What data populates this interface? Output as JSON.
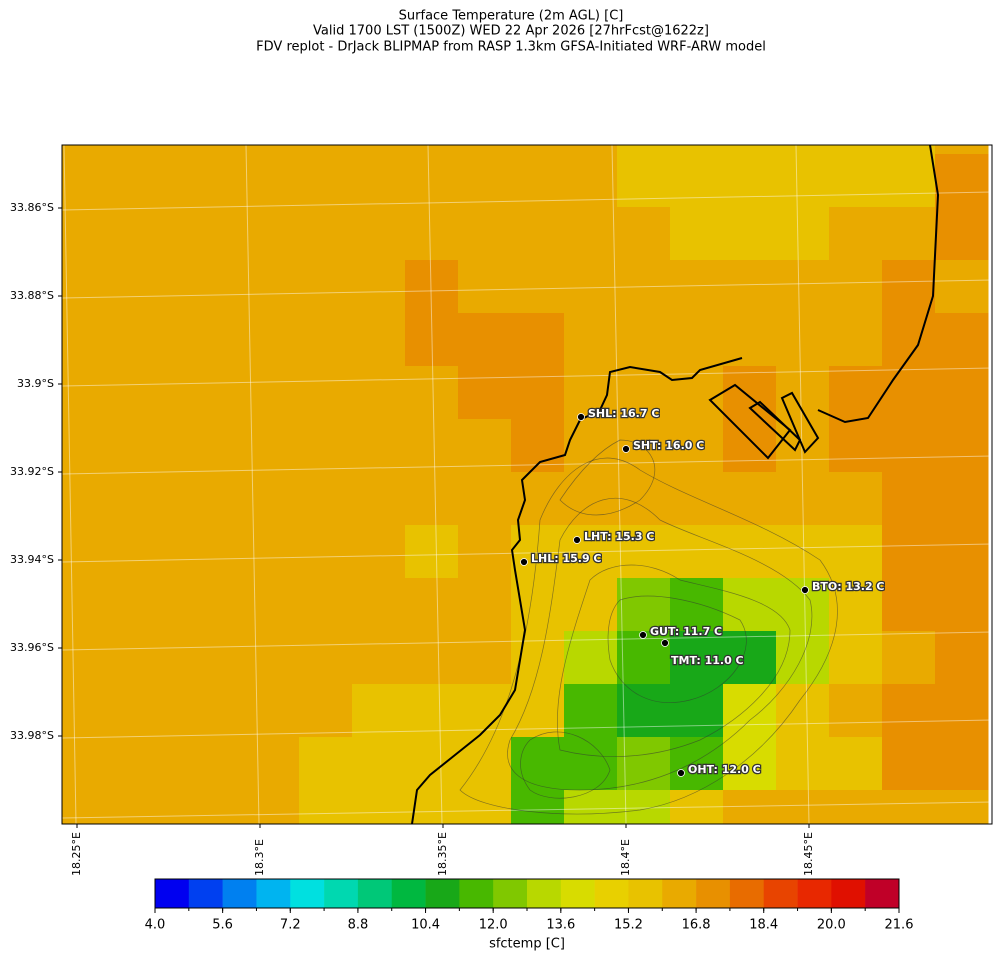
{
  "title": [
    "Surface Temperature (2m AGL) [C]",
    "Valid 1700 LST (1500Z) WED 22 Apr 2026 [27hrFcst@1622z]",
    "FDV replot - DrJack BLIPMAP from RASP 1.3km GFSA-Initiated WRF-ARW model"
  ],
  "map": {
    "lat_labels": [
      "33.86°S",
      "33.88°S",
      "33.9°S",
      "33.92°S",
      "33.94°S",
      "33.96°S",
      "33.98°S"
    ],
    "lon_labels": [
      "18.25°E",
      "18.3°E",
      "18.35°E",
      "18.4°E",
      "18.45°E"
    ],
    "stations": [
      "SHL: 16.7 C",
      "SHT: 16.0 C",
      "LHT: 15.3 C",
      "LHL: 15.9 C",
      "BTO: 13.2 C",
      "GUT: 11.7 C",
      "TMT: 11.0 C",
      "OHT: 12.0 C"
    ],
    "grid": [
      [
        16.2,
        16.2,
        16.2,
        16.2,
        16.2,
        16.2,
        16.2,
        16.2,
        16.2,
        16.2,
        16.2,
        15.4,
        15.4,
        15.4,
        15.4,
        15.4,
        15.4,
        16.2
      ],
      [
        16.2,
        16.2,
        16.2,
        16.2,
        16.2,
        16.2,
        16.2,
        16.2,
        16.2,
        16.2,
        16.2,
        15.4,
        15.4,
        15.4,
        15.4,
        15.4,
        15.4,
        17.0
      ],
      [
        16.2,
        16.2,
        16.2,
        16.2,
        16.2,
        16.2,
        16.2,
        16.2,
        16.2,
        16.2,
        16.2,
        16.2,
        15.4,
        15.4,
        15.4,
        16.2,
        16.2,
        17.0
      ],
      [
        16.2,
        16.2,
        16.2,
        16.2,
        16.2,
        16.2,
        16.2,
        17.0,
        16.2,
        16.2,
        16.2,
        16.2,
        16.2,
        16.2,
        16.2,
        16.2,
        17.0,
        16.2
      ],
      [
        16.2,
        16.2,
        16.2,
        16.2,
        16.2,
        16.2,
        16.2,
        17.0,
        17.0,
        17.0,
        16.2,
        16.2,
        16.2,
        16.2,
        16.2,
        16.2,
        17.0,
        17.0
      ],
      [
        16.2,
        16.2,
        16.2,
        16.2,
        16.2,
        16.2,
        16.2,
        16.2,
        17.0,
        17.0,
        16.2,
        16.2,
        16.2,
        17.0,
        16.2,
        17.0,
        17.0,
        17.0
      ],
      [
        16.2,
        16.2,
        16.2,
        16.2,
        16.2,
        16.2,
        16.2,
        16.2,
        16.2,
        17.0,
        16.2,
        16.2,
        16.2,
        17.0,
        16.2,
        17.0,
        17.0,
        17.0
      ],
      [
        16.2,
        16.2,
        16.2,
        16.2,
        16.2,
        16.2,
        16.2,
        16.2,
        16.2,
        16.2,
        16.2,
        16.2,
        16.2,
        16.2,
        16.2,
        16.2,
        17.0,
        17.0
      ],
      [
        16.2,
        16.2,
        16.2,
        16.2,
        16.2,
        16.2,
        16.2,
        15.4,
        16.2,
        15.4,
        15.4,
        15.4,
        15.4,
        15.4,
        15.4,
        15.4,
        17.0,
        17.0
      ],
      [
        16.2,
        16.2,
        16.2,
        16.2,
        16.2,
        16.2,
        16.2,
        16.2,
        16.2,
        15.4,
        15.4,
        12.4,
        11.6,
        13.2,
        13.2,
        15.4,
        17.0,
        17.0
      ],
      [
        16.2,
        16.2,
        16.2,
        16.2,
        16.2,
        16.2,
        16.2,
        16.2,
        16.2,
        15.4,
        13.2,
        11.6,
        10.8,
        10.8,
        13.2,
        15.4,
        16.2,
        17.0
      ],
      [
        16.2,
        16.2,
        16.2,
        16.2,
        16.2,
        16.2,
        15.4,
        15.4,
        15.4,
        15.4,
        11.6,
        10.8,
        10.8,
        14.0,
        15.4,
        16.2,
        17.0,
        17.0
      ],
      [
        16.2,
        16.2,
        16.2,
        16.2,
        16.2,
        15.4,
        15.4,
        15.4,
        15.4,
        11.6,
        11.6,
        12.4,
        11.6,
        14.0,
        15.4,
        15.4,
        17.0,
        17.0
      ],
      [
        16.2,
        16.2,
        16.2,
        16.2,
        16.2,
        15.4,
        15.4,
        15.4,
        15.4,
        11.6,
        13.2,
        13.2,
        15.4,
        16.2,
        16.2,
        16.2,
        16.2,
        16.2
      ]
    ],
    "colorbar": {
      "label": "sfctemp [C]",
      "bounds": [
        4.0,
        4.8,
        5.6,
        6.4,
        7.2,
        8.0,
        8.8,
        9.6,
        10.4,
        11.2,
        12.0,
        12.8,
        13.6,
        14.4,
        15.2,
        16.0,
        16.8,
        17.6,
        18.4,
        19.2,
        20.0,
        20.8,
        21.6
      ],
      "colors": [
        "#0000f0",
        "#0040f0",
        "#0080f0",
        "#00b4f0",
        "#00e0e0",
        "#00d8b0",
        "#00c878",
        "#00b840",
        "#18a818",
        "#48b800",
        "#80c800",
        "#b8d800",
        "#d8dc00",
        "#e8d000",
        "#e8c200",
        "#e9aa00",
        "#e89000",
        "#e86c00",
        "#e84400",
        "#e82800",
        "#e01000",
        "#c00028"
      ],
      "ticks": [
        {
          "value": 4.0,
          "label": "4.0"
        },
        5.6,
        7.2,
        8.8,
        10.4,
        {
          "value": 12.0,
          "label": "12.0"
        },
        13.6,
        15.2,
        16.8,
        18.4,
        {
          "value": 20.0,
          "label": "20.0"
        },
        21.6
      ]
    }
  }
}
